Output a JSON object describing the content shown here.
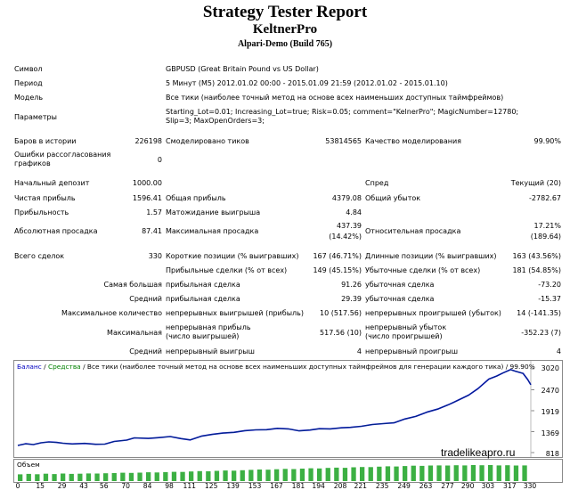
{
  "header": {
    "title": "Strategy Tester Report",
    "expert": "KeltnerPro",
    "server": "Alpari-Demo (Build 765)"
  },
  "info": {
    "symbol_label": "Символ",
    "symbol_value": "GBPUSD (Great Britain Pound vs US Dollar)",
    "period_label": "Период",
    "period_value": "5 Минут (M5) 2012.01.02 00:00 - 2015.01.09 21:59 (2012.01.02 - 2015.01.10)",
    "model_label": "Модель",
    "model_value": "Все тики (наиболее точный метод на основе всех наименьших доступных таймфреймов)",
    "params_label": "Параметры",
    "params_value": "Starting_Lot=0.01; Increasing_Lot=true; Risk=0.05; comment=\"KelnerPro\"; MagicNumber=12780; Slip=3; MaxOpenOrders=3;"
  },
  "stats": {
    "bars_label": "Баров в истории",
    "bars_value": "226198",
    "ticks_label": "Смоделировано тиков",
    "ticks_value": "53814565",
    "quality_label": "Качество моделирования",
    "quality_value": "99.90%",
    "errors_label": "Ошибки рассогласования графиков",
    "errors_value": "0",
    "deposit_label": "Начальный депозит",
    "deposit_value": "1000.00",
    "spread_label": "Спред",
    "spread_value": "Текущий (20)",
    "net_label": "Чистая прибыль",
    "net_value": "1596.41",
    "gross_profit_label": "Общая прибыль",
    "gross_profit_value": "4379.08",
    "gross_loss_label": "Общий убыток",
    "gross_loss_value": "-2782.67",
    "pf_label": "Прибыльность",
    "pf_value": "1.57",
    "payoff_label": "Матожидание выигрыша",
    "payoff_value": "4.84",
    "abs_dd_label": "Абсолютная просадка",
    "abs_dd_value": "87.41",
    "max_dd_label": "Максимальная просадка",
    "max_dd_value1": "437.39",
    "max_dd_value2": "(14.42%)",
    "rel_dd_label": "Относительная просадка",
    "rel_dd_value1": "17.21%",
    "rel_dd_value2": "(189.64)",
    "total_label": "Всего сделок",
    "total_value": "330",
    "short_label": "Короткие позиции (% выигравших)",
    "short_value": "167 (46.71%)",
    "long_label": "Длинные позиции (% выигравших)",
    "long_value": "163 (43.56%)",
    "win_label": "Прибыльные сделки (% от всех)",
    "win_value": "149 (45.15%)",
    "loss_label": "Убыточные сделки (% от всех)",
    "loss_value": "181 (54.85%)",
    "largest_label": "Самая большая",
    "largest_win_label": "прибыльная сделка",
    "largest_win_value": "91.26",
    "largest_loss_label": "убыточная сделка",
    "largest_loss_value": "-73.20",
    "average_label": "Средний",
    "avg_win_label": "прибыльная сделка",
    "avg_win_value": "29.39",
    "avg_loss_label": "убыточная сделка",
    "avg_loss_value": "-15.37",
    "max_count_label": "Максимальное количество",
    "max_cons_win_label": "непрерывных выигрышей (прибыль)",
    "max_cons_win_value": "10 (517.56)",
    "max_cons_loss_label": "непрерывных проигрышей (убыток)",
    "max_cons_loss_value": "14 (-141.35)",
    "maximal_label": "Максимальная",
    "max_cons_profit_label": "непрерывная прибыль (число выигрышей)",
    "max_cons_profit_value": "517.56 (10)",
    "max_cons_lossval_label": "непрерывный убыток (число проигрышей)",
    "max_cons_lossval_value": "-352.23 (7)",
    "avg2_label": "Средний",
    "avg_cons_win_label": "непрерывный выигрыш",
    "avg_cons_win_value": "4",
    "avg_cons_loss_label": "непрерывный проигрыш",
    "avg_cons_loss_value": "4"
  },
  "chart_header": {
    "balance": "Баланс",
    "sep1": " / ",
    "equity": "Средства",
    "rest": " / Все тики (наиболее точный метод на основе всех наименьших доступных таймфреймов для генерации каждого тика) / 99.90%"
  },
  "watermark": "tradelikeapro.ru",
  "volume_label": "Объем",
  "colors": {
    "balance": "#0000c0",
    "equity": "#008000",
    "volume": "#3cb043"
  },
  "chart_data": {
    "type": "line",
    "ylim": [
      818,
      3020
    ],
    "yticks": [
      "3020",
      "2470",
      "1919",
      "1369",
      "818"
    ],
    "xticks": [
      "0",
      "15",
      "29",
      "43",
      "56",
      "70",
      "84",
      "98",
      "111",
      "125",
      "139",
      "153",
      "167",
      "181",
      "194",
      "208",
      "221",
      "235",
      "249",
      "263",
      "277",
      "290",
      "303",
      "317",
      "330"
    ],
    "xlim": [
      0,
      330
    ],
    "series": [
      {
        "name": "Баланс",
        "x": [
          0,
          5,
          10,
          15,
          20,
          25,
          29,
          35,
          43,
          50,
          56,
          62,
          70,
          75,
          84,
          90,
          98,
          105,
          111,
          118,
          125,
          132,
          139,
          146,
          153,
          160,
          167,
          174,
          181,
          188,
          194,
          201,
          208,
          214,
          221,
          228,
          235,
          242,
          249,
          256,
          263,
          270,
          277,
          283,
          290,
          296,
          303,
          308,
          312,
          317,
          320,
          325,
          328,
          330
        ],
        "values": [
          1005,
          1050,
          1030,
          1075,
          1100,
          1085,
          1065,
          1045,
          1060,
          1035,
          1040,
          1110,
          1145,
          1205,
          1190,
          1210,
          1240,
          1185,
          1150,
          1250,
          1295,
          1330,
          1350,
          1395,
          1415,
          1420,
          1455,
          1440,
          1390,
          1410,
          1445,
          1440,
          1470,
          1480,
          1510,
          1555,
          1580,
          1600,
          1700,
          1770,
          1880,
          1960,
          2075,
          2190,
          2330,
          2500,
          2750,
          2830,
          2910,
          3000,
          2960,
          2900,
          2740,
          2600
        ]
      }
    ]
  },
  "volume_data": {
    "values": [
      0.42,
      0.45,
      0.43,
      0.46,
      0.44,
      0.47,
      0.45,
      0.46,
      0.48,
      0.47,
      0.49,
      0.5,
      0.52,
      0.51,
      0.53,
      0.55,
      0.54,
      0.56,
      0.58,
      0.57,
      0.6,
      0.62,
      0.61,
      0.64,
      0.66,
      0.65,
      0.68,
      0.7,
      0.72,
      0.71,
      0.74,
      0.76,
      0.75,
      0.78,
      0.8,
      0.79,
      0.82,
      0.84,
      0.83,
      0.86,
      0.88,
      0.87,
      0.9,
      0.92,
      0.91,
      0.94,
      0.96,
      0.95,
      0.97,
      0.98,
      0.97,
      0.99,
      0.98,
      1.0,
      0.99,
      1.0,
      0.98,
      0.99,
      0.97,
      0.98
    ]
  }
}
